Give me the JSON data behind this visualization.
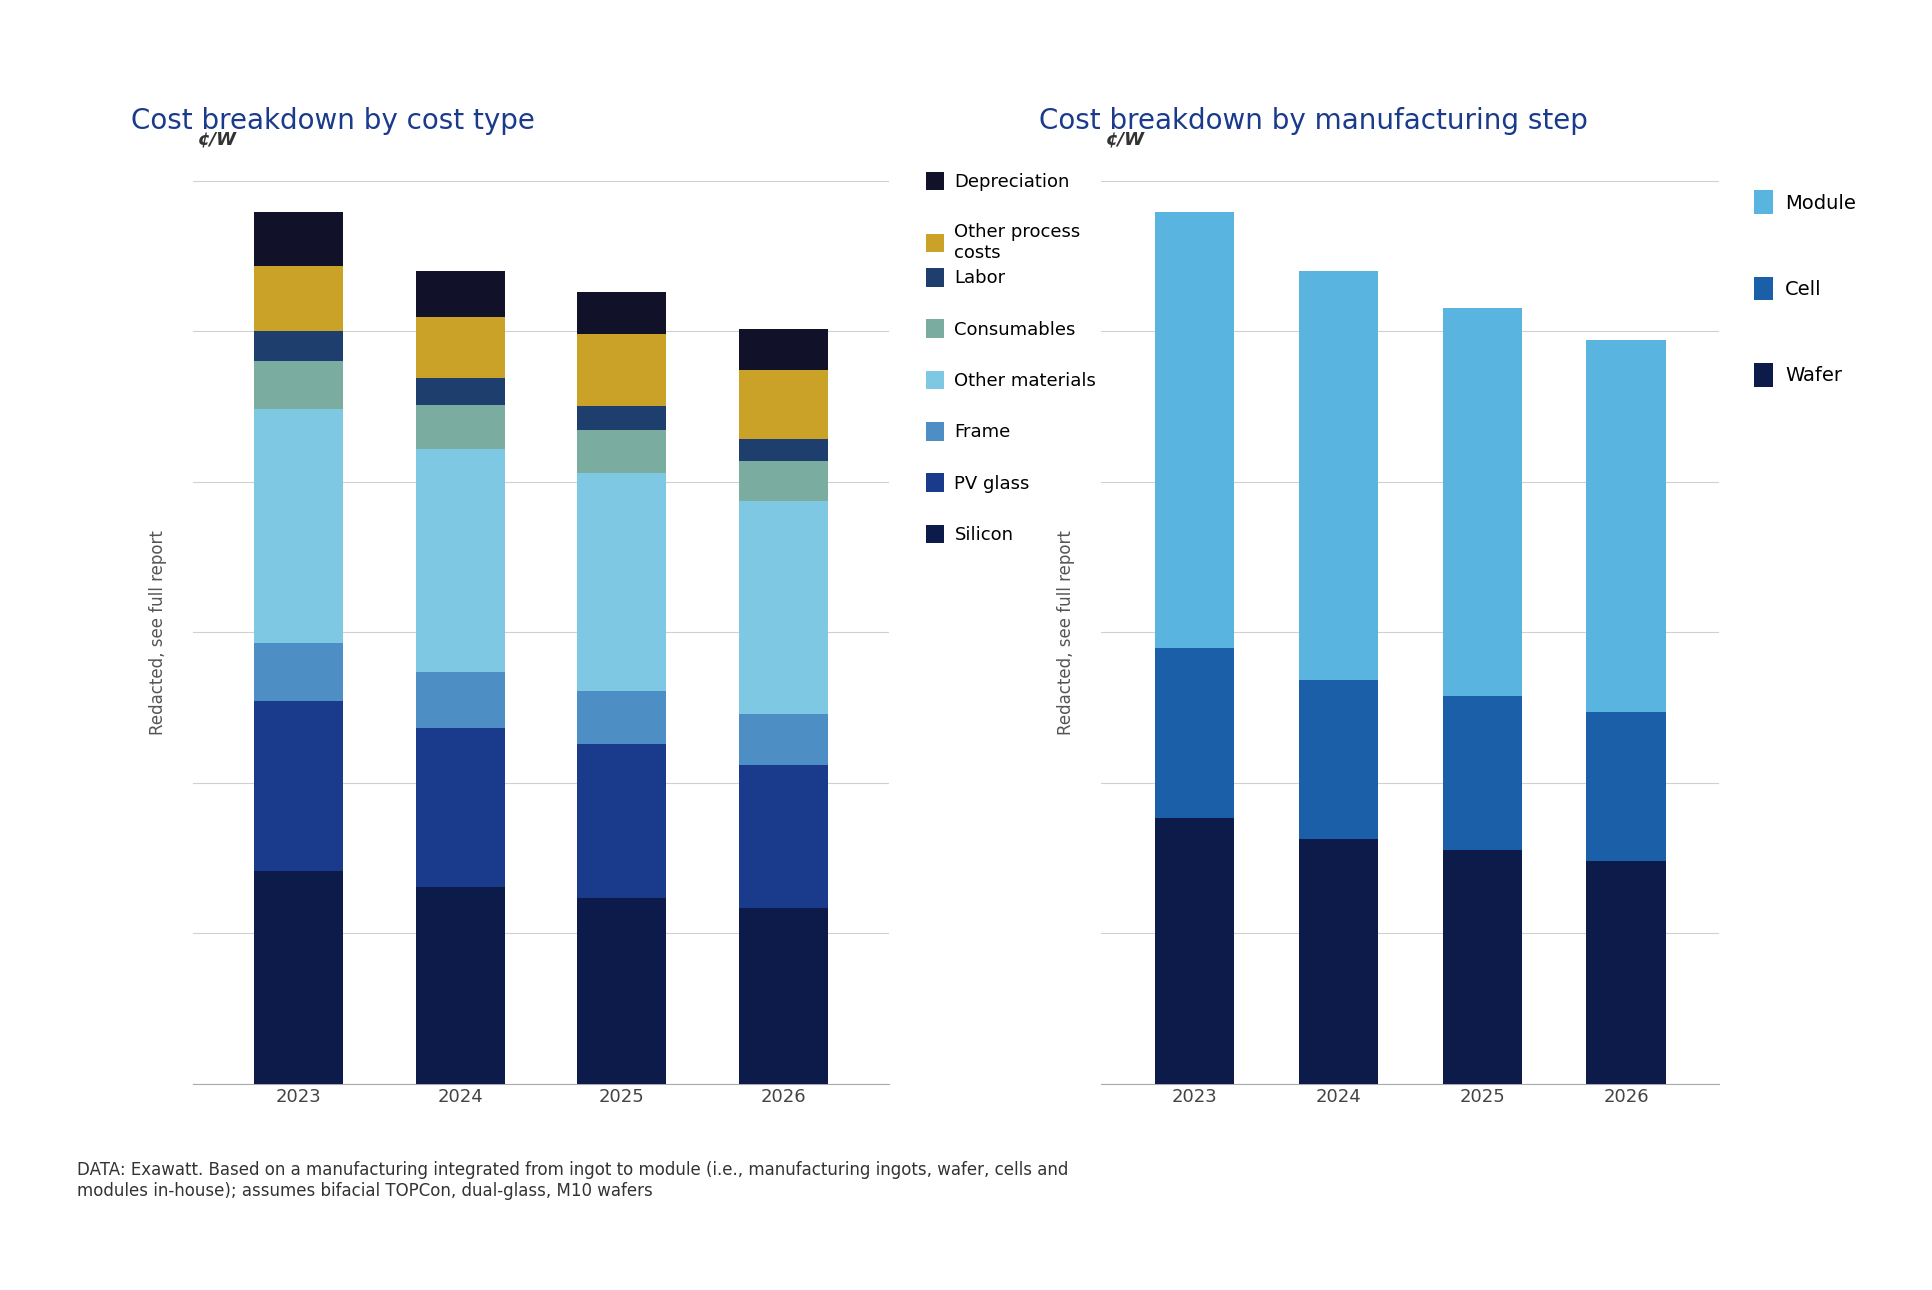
{
  "left_title": "Cost breakdown by cost type",
  "right_title": "Cost breakdown by manufacturing step",
  "ylabel": "¢/W",
  "years": [
    "2023",
    "2024",
    "2025",
    "2026"
  ],
  "redacted_label": "Redacted, see full report",
  "footnote": "DATA: Exawatt. Based on a manufacturing integrated from ingot to module (i.e., manufacturing ingots, wafer, cells and\nmodules in-house); assumes bifacial TOPCon, dual-glass, M10 wafers",
  "left_chart": {
    "Silicon": [
      2.0,
      1.85,
      1.75,
      1.65
    ],
    "PV glass": [
      1.6,
      1.5,
      1.45,
      1.35
    ],
    "Frame": [
      0.55,
      0.52,
      0.5,
      0.48
    ],
    "Other materials": [
      2.2,
      2.1,
      2.05,
      2.0
    ],
    "Consumables": [
      0.45,
      0.42,
      0.4,
      0.38
    ],
    "Labor": [
      0.28,
      0.25,
      0.23,
      0.21
    ],
    "Other process costs": [
      0.62,
      0.58,
      0.68,
      0.65
    ],
    "Depreciation": [
      0.5,
      0.43,
      0.39,
      0.38
    ]
  },
  "left_colors": {
    "Silicon": "#0d1b4b",
    "PV glass": "#1a3a8c",
    "Frame": "#4d8fc4",
    "Other materials": "#7ec8e3",
    "Consumables": "#7aada0",
    "Labor": "#1e3f6e",
    "Other process costs": "#c9a227",
    "Depreciation": "#11112a"
  },
  "right_chart": {
    "Wafer": [
      2.5,
      2.3,
      2.2,
      2.1
    ],
    "Cell": [
      1.6,
      1.5,
      1.45,
      1.4
    ],
    "Module": [
      4.1,
      3.85,
      3.65,
      3.5
    ]
  },
  "right_colors": {
    "Wafer": "#0d1b4b",
    "Cell": "#1a5fa8",
    "Module": "#5ab4e0"
  },
  "title_color": "#1a3a8c",
  "title_fontsize": 20,
  "axis_label_fontsize": 13,
  "tick_fontsize": 13,
  "legend_fontsize": 13,
  "footnote_fontsize": 12,
  "redacted_fontsize": 12,
  "bar_width": 0.55,
  "ylim_left": [
    0,
    8.5
  ],
  "ylim_right": [
    0,
    8.5
  ],
  "grid_color": "#d0d0d0",
  "n_gridlines": 6
}
